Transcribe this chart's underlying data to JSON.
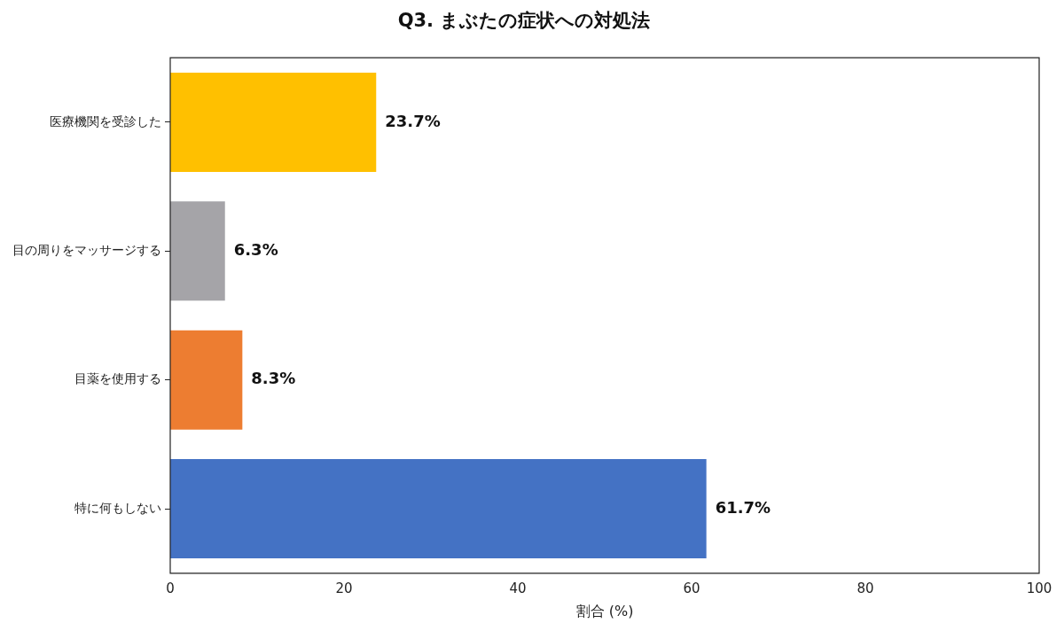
{
  "chart_data": {
    "type": "bar",
    "orientation": "horizontal",
    "title": "Q3. まぶたの症状への対処法",
    "xlabel": "割合 (%)",
    "categories": [
      "医療機関を受診した",
      "目の周りをマッサージする",
      "目薬を使用する",
      "特に何もしない"
    ],
    "values": [
      23.7,
      6.3,
      8.3,
      61.7
    ],
    "colors": [
      "#ffc000",
      "#a5a4a8",
      "#ed7d31",
      "#4472c4"
    ],
    "value_labels": [
      "23.7%",
      "6.3%",
      "8.3%",
      "61.7%"
    ],
    "xlim": [
      0,
      100
    ],
    "xticks": [
      0,
      20,
      40,
      60,
      80,
      100
    ],
    "grid": false,
    "legend": false
  }
}
